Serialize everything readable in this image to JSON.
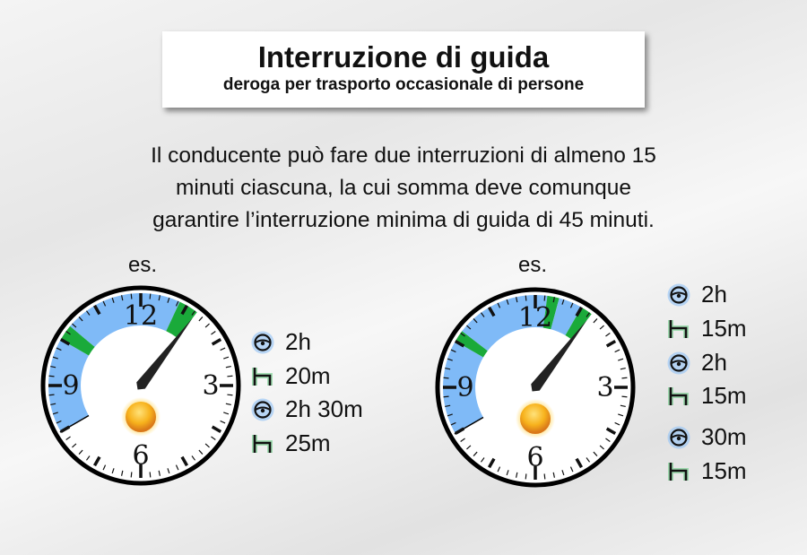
{
  "header": {
    "title": "Interruzione di guida",
    "subtitle": "deroga per trasporto occasionale di persone"
  },
  "description": [
    "Il conducente può fare due interruzioni di almeno 15",
    "minuti ciascuna, la cui somma deve comunque",
    "garantire l’interruzione minima di guida di 45 minuti."
  ],
  "colors": {
    "driving": "#7fbaf7",
    "break": "#1aaa3a",
    "icon_glow_drive": "#9cc8f5",
    "icon_glow_break": "#6fd08a"
  },
  "examples": [
    {
      "label": "es.",
      "items": [
        {
          "type": "driving",
          "icon": "steering-wheel-icon",
          "text": "2h",
          "minutes": 120
        },
        {
          "type": "break",
          "icon": "bed-icon",
          "text": "20m",
          "minutes": 20
        },
        {
          "type": "driving",
          "icon": "steering-wheel-icon",
          "text": "2h 30m",
          "minutes": 150
        },
        {
          "type": "break",
          "icon": "bed-icon",
          "text": "25m",
          "minutes": 25
        }
      ]
    },
    {
      "label": "es.",
      "items": [
        {
          "type": "driving",
          "icon": "steering-wheel-icon",
          "text": "2h",
          "minutes": 120
        },
        {
          "type": "break",
          "icon": "bed-icon",
          "text": "15m",
          "minutes": 15
        },
        {
          "type": "driving",
          "icon": "steering-wheel-icon",
          "text": "2h",
          "minutes": 120
        },
        {
          "type": "break",
          "icon": "bed-icon",
          "text": "15m",
          "minutes": 15
        },
        {
          "type": "driving",
          "icon": "steering-wheel-icon",
          "text": "30m",
          "minutes": 30
        },
        {
          "type": "break",
          "icon": "bed-icon",
          "text": "15m",
          "minutes": 15
        }
      ]
    }
  ],
  "clock_numerals": [
    "12",
    "3",
    "6",
    "9"
  ]
}
